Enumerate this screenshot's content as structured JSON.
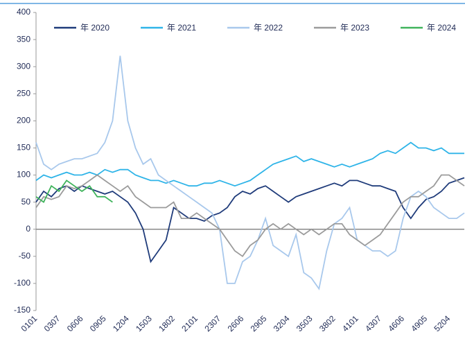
{
  "chart_data": {
    "type": "line",
    "categories": [
      "0101",
      null,
      null,
      "0307",
      null,
      null,
      "0606",
      null,
      null,
      "0905",
      null,
      null,
      "1204",
      null,
      null,
      "1503",
      null,
      null,
      "1802",
      null,
      null,
      "2101",
      null,
      null,
      "2307",
      null,
      null,
      "2606",
      null,
      null,
      "2905",
      null,
      null,
      "3204",
      null,
      null,
      "3503",
      null,
      null,
      "3802",
      null,
      null,
      "4101",
      null,
      null,
      "4307",
      null,
      null,
      "4606",
      null,
      null,
      "4905",
      null,
      null,
      "5204",
      null,
      null
    ],
    "series": [
      {
        "name": "年 2020",
        "color": "#1f3b7a",
        "values": [
          50,
          70,
          60,
          75,
          80,
          70,
          80,
          75,
          70,
          65,
          70,
          60,
          50,
          30,
          0,
          -60,
          -40,
          -20,
          40,
          30,
          20,
          20,
          15,
          25,
          30,
          40,
          60,
          70,
          65,
          75,
          80,
          70,
          60,
          50,
          60,
          65,
          70,
          75,
          80,
          85,
          80,
          90,
          90,
          85,
          80,
          80,
          75,
          70,
          40,
          20,
          40,
          55,
          60,
          70,
          85,
          90,
          95
        ]
      },
      {
        "name": "年 2021",
        "color": "#2eb4e8",
        "values": [
          90,
          100,
          95,
          100,
          105,
          100,
          100,
          105,
          100,
          110,
          105,
          110,
          110,
          100,
          95,
          90,
          90,
          85,
          90,
          85,
          80,
          80,
          85,
          85,
          90,
          85,
          80,
          85,
          90,
          100,
          110,
          120,
          125,
          130,
          135,
          125,
          130,
          125,
          120,
          115,
          120,
          115,
          120,
          125,
          130,
          140,
          145,
          140,
          150,
          160,
          150,
          150,
          145,
          150,
          140,
          140,
          140
        ]
      },
      {
        "name": "年 2022",
        "color": "#a8c8ec",
        "values": [
          160,
          120,
          110,
          120,
          125,
          130,
          130,
          135,
          140,
          160,
          200,
          320,
          200,
          150,
          120,
          130,
          100,
          90,
          80,
          70,
          60,
          50,
          40,
          30,
          0,
          -100,
          -100,
          -60,
          -50,
          -20,
          20,
          -30,
          -40,
          -50,
          -10,
          -80,
          -90,
          -110,
          -40,
          10,
          20,
          40,
          -20,
          -30,
          -40,
          -40,
          -50,
          -40,
          20,
          60,
          70,
          60,
          40,
          30,
          20,
          20,
          30
        ]
      },
      {
        "name": "年 2023",
        "color": "#9b9b9b",
        "values": [
          40,
          60,
          55,
          60,
          80,
          75,
          80,
          90,
          100,
          90,
          80,
          70,
          80,
          60,
          50,
          40,
          40,
          40,
          50,
          20,
          20,
          30,
          20,
          10,
          0,
          -20,
          -40,
          -50,
          -30,
          -20,
          0,
          10,
          0,
          10,
          0,
          -10,
          0,
          -10,
          0,
          10,
          10,
          -10,
          -20,
          -30,
          -20,
          -10,
          10,
          30,
          50,
          60,
          60,
          70,
          80,
          100,
          100,
          90,
          80
        ]
      },
      {
        "name": "年 2024",
        "color": "#3fb35b",
        "values": [
          60,
          50,
          80,
          70,
          90,
          80,
          70,
          80,
          60,
          60,
          50,
          null,
          null,
          null,
          null,
          null,
          null,
          null,
          null,
          null,
          null,
          null,
          null,
          null,
          null,
          null,
          null,
          null,
          null,
          null,
          null,
          null,
          null,
          null,
          null,
          null,
          null,
          null,
          null,
          null,
          null,
          null,
          null,
          null,
          null,
          null,
          null,
          null,
          null,
          null,
          null,
          null,
          null,
          null,
          null,
          null,
          null
        ]
      }
    ],
    "ylim": [
      -150,
      400
    ],
    "yticks": [
      -150,
      -100,
      -50,
      0,
      50,
      100,
      150,
      200,
      250,
      300,
      350,
      400
    ]
  }
}
